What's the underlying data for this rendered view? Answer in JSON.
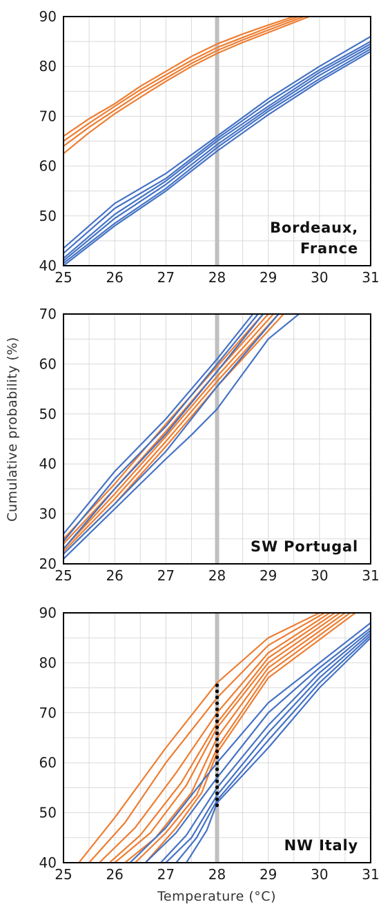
{
  "figure": {
    "ylabel": "Cumulative probability (%)",
    "xlabel": "Temperature (°C)"
  },
  "colors": {
    "orange": "#ed7d31",
    "blue": "#4472c4",
    "marker": "#bfbfbf",
    "dots": "#000000",
    "grid": "#d9d9d9"
  },
  "chart_data": [
    {
      "type": "line",
      "label_lines": [
        "Bordeaux,",
        "France"
      ],
      "xlim": [
        25,
        31
      ],
      "ylim": [
        40,
        90
      ],
      "xticks": [
        25,
        26,
        27,
        28,
        29,
        30,
        31
      ],
      "yticks": [
        40,
        50,
        60,
        70,
        80,
        90
      ],
      "vertical_marker_x": 28,
      "series": [
        {
          "color": "orange",
          "x": [
            25,
            25.5,
            26,
            26.5,
            27,
            27.5,
            28,
            28.5,
            29,
            29.5
          ],
          "y": [
            66,
            69.5,
            72.5,
            76,
            79,
            82,
            84.5,
            86.5,
            88.3,
            90
          ]
        },
        {
          "color": "orange",
          "x": [
            25,
            25.5,
            26,
            26.5,
            27,
            27.5,
            28,
            28.5,
            29,
            29.6
          ],
          "y": [
            65,
            68.6,
            72,
            75.3,
            78.3,
            81.2,
            83.8,
            85.8,
            87.8,
            90
          ]
        },
        {
          "color": "orange",
          "x": [
            25,
            25.5,
            26,
            26.5,
            27,
            27.5,
            28,
            28.5,
            29,
            29.7
          ],
          "y": [
            64,
            67.8,
            71.2,
            74.6,
            77.6,
            80.6,
            83.2,
            85.3,
            87.3,
            90
          ]
        },
        {
          "color": "orange",
          "x": [
            25,
            25.5,
            26,
            26.5,
            27,
            27.5,
            28,
            28.5,
            29,
            29.8
          ],
          "y": [
            62.5,
            66.7,
            70.5,
            73.8,
            77,
            80,
            82.6,
            84.8,
            86.8,
            90
          ]
        },
        {
          "color": "blue",
          "x": [
            25,
            26,
            27,
            28,
            29,
            30,
            31
          ],
          "y": [
            43.5,
            52.5,
            58.5,
            66,
            73.5,
            80,
            86
          ]
        },
        {
          "color": "blue",
          "x": [
            25,
            26,
            27,
            28,
            29,
            30,
            31
          ],
          "y": [
            42.5,
            51.5,
            57.5,
            65.5,
            72.8,
            79.3,
            85
          ]
        },
        {
          "color": "blue",
          "x": [
            25,
            26,
            27,
            28,
            29,
            30,
            31
          ],
          "y": [
            41.5,
            50.3,
            57,
            65,
            72,
            78.8,
            84.5
          ]
        },
        {
          "color": "blue",
          "x": [
            25,
            26,
            27,
            28,
            29,
            30,
            31
          ],
          "y": [
            41,
            49.5,
            56.3,
            64.3,
            71.5,
            78.2,
            84
          ]
        },
        {
          "color": "blue",
          "x": [
            25,
            26,
            27,
            28,
            29,
            30,
            31
          ],
          "y": [
            40.5,
            48.5,
            55.5,
            63.7,
            71,
            77.5,
            83.5
          ]
        },
        {
          "color": "blue",
          "x": [
            25,
            26,
            27,
            28,
            29,
            30,
            31
          ],
          "y": [
            40,
            48,
            55,
            63,
            70.3,
            77,
            83
          ]
        }
      ]
    },
    {
      "type": "line",
      "label_lines": [
        "SW Portugal"
      ],
      "xlim": [
        25,
        31
      ],
      "ylim": [
        20,
        70
      ],
      "xticks": [
        25,
        26,
        27,
        28,
        29,
        30,
        31
      ],
      "yticks": [
        20,
        30,
        40,
        50,
        60,
        70
      ],
      "vertical_marker_x": 28,
      "series": [
        {
          "color": "orange",
          "x": [
            25,
            26,
            27,
            28,
            28.9
          ],
          "y": [
            25,
            36,
            48,
            59.5,
            70
          ]
        },
        {
          "color": "orange",
          "x": [
            25,
            26,
            27,
            28,
            29
          ],
          "y": [
            24,
            35,
            46.5,
            58.5,
            70
          ]
        },
        {
          "color": "orange",
          "x": [
            25,
            26,
            27,
            28,
            29.1
          ],
          "y": [
            23,
            34,
            45.5,
            57.5,
            70
          ]
        },
        {
          "color": "orange",
          "x": [
            25,
            26,
            27,
            28,
            29.2
          ],
          "y": [
            22.5,
            33,
            44.5,
            56.5,
            70
          ]
        },
        {
          "color": "orange",
          "x": [
            25,
            26,
            27,
            28,
            29.3
          ],
          "y": [
            22,
            32,
            43.5,
            55.5,
            70
          ]
        },
        {
          "color": "blue",
          "x": [
            25,
            26,
            27,
            28,
            28.7
          ],
          "y": [
            26,
            38.5,
            49,
            61,
            70
          ]
        },
        {
          "color": "blue",
          "x": [
            25,
            26,
            27,
            28,
            28.8
          ],
          "y": [
            24.5,
            37,
            47.5,
            60,
            70
          ]
        },
        {
          "color": "blue",
          "x": [
            25,
            26,
            27,
            28,
            28.9
          ],
          "y": [
            23,
            35,
            46,
            58.5,
            70
          ]
        },
        {
          "color": "blue",
          "x": [
            25,
            26,
            27,
            28,
            29.2
          ],
          "y": [
            22,
            32,
            42.5,
            55.5,
            70
          ]
        },
        {
          "color": "blue",
          "x": [
            25,
            26,
            27,
            27.5,
            28,
            28.5,
            29,
            29.6
          ],
          "y": [
            21,
            31,
            41,
            45.8,
            51,
            58,
            65,
            70
          ]
        }
      ]
    },
    {
      "type": "line",
      "label_lines": [
        "NW Italy"
      ],
      "xlim": [
        25,
        31
      ],
      "ylim": [
        40,
        90
      ],
      "xticks": [
        25,
        26,
        27,
        28,
        29,
        30,
        31
      ],
      "yticks": [
        40,
        50,
        60,
        70,
        80,
        90
      ],
      "vertical_marker_x": 28,
      "dotted_range": {
        "x": 28,
        "y": [
          51.5,
          76
        ]
      },
      "series": [
        {
          "color": "orange",
          "x": [
            25.3,
            26,
            27,
            28,
            29,
            30
          ],
          "y": [
            40,
            49,
            63,
            76,
            85,
            90
          ]
        },
        {
          "color": "orange",
          "x": [
            25.5,
            26.2,
            27,
            28,
            29,
            30.1
          ],
          "y": [
            40,
            48,
            60,
            73,
            83.5,
            90
          ]
        },
        {
          "color": "orange",
          "x": [
            25.7,
            26.4,
            27.2,
            28,
            29,
            30.2
          ],
          "y": [
            40,
            47,
            58,
            70,
            82,
            90
          ]
        },
        {
          "color": "orange",
          "x": [
            25.9,
            26.5,
            27.3,
            28,
            29,
            30.3
          ],
          "y": [
            40,
            45.5,
            56,
            68,
            81,
            90
          ]
        },
        {
          "color": "orange",
          "x": [
            26.0,
            26.7,
            27.4,
            28,
            29,
            30.4
          ],
          "y": [
            40,
            46,
            55.5,
            67,
            80,
            90
          ]
        },
        {
          "color": "orange",
          "x": [
            26.2,
            26.8,
            27.5,
            28,
            29,
            30.5
          ],
          "y": [
            40,
            45,
            54,
            65,
            79,
            90
          ]
        },
        {
          "color": "orange",
          "x": [
            26.4,
            27,
            27.6,
            28,
            29,
            30.6
          ],
          "y": [
            40,
            46,
            53.5,
            63,
            78,
            90
          ]
        },
        {
          "color": "orange",
          "x": [
            26.6,
            27.2,
            27.7,
            28,
            29,
            30.7
          ],
          "y": [
            40,
            47,
            54,
            62,
            77,
            90
          ]
        },
        {
          "color": "blue",
          "x": [
            26.3,
            27,
            28,
            29,
            30,
            31
          ],
          "y": [
            40,
            47,
            60,
            72,
            80,
            88
          ]
        },
        {
          "color": "blue",
          "x": [
            26.6,
            27.2,
            28,
            29,
            30,
            31
          ],
          "y": [
            40,
            46,
            57,
            70,
            79,
            87
          ]
        },
        {
          "color": "blue",
          "x": [
            26.9,
            27.4,
            28,
            29,
            30,
            31
          ],
          "y": [
            40,
            45.5,
            55,
            67.5,
            78,
            86.5
          ]
        },
        {
          "color": "blue",
          "x": [
            27.0,
            27.5,
            28,
            29,
            30,
            31
          ],
          "y": [
            40,
            45,
            53.5,
            66,
            77,
            86
          ]
        },
        {
          "color": "blue",
          "x": [
            27.2,
            27.6,
            28,
            29,
            30,
            31
          ],
          "y": [
            40,
            45,
            52.5,
            64.5,
            76,
            85.5
          ]
        },
        {
          "color": "blue",
          "x": [
            27.4,
            27.8,
            28,
            29,
            30,
            31
          ],
          "y": [
            40,
            46.5,
            52,
            63,
            75,
            85
          ]
        }
      ]
    }
  ]
}
